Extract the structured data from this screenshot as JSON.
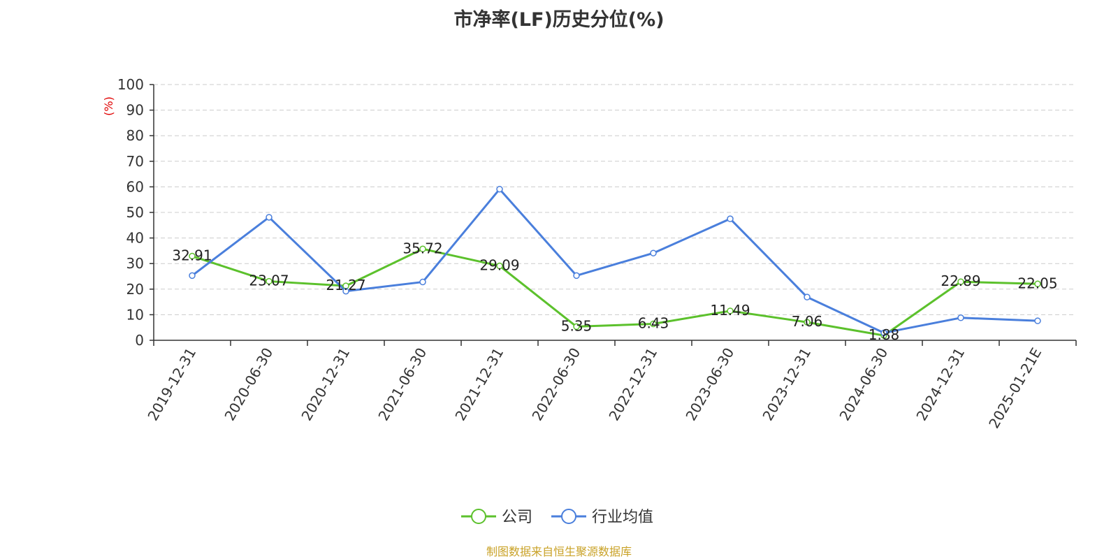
{
  "title": "市净率(LF)历史分位(%)",
  "source": "制图数据来自恒生聚源数据库",
  "chart_data": {
    "type": "line",
    "title": "市净率(LF)历史分位(%)",
    "ylabel": "(%)",
    "ylim": [
      0,
      100
    ],
    "yticks": [
      0,
      10,
      20,
      30,
      40,
      50,
      60,
      70,
      80,
      90,
      100
    ],
    "grid": true,
    "legend_position": "bottom-center",
    "categories": [
      "2019-12-31",
      "2020-06-30",
      "2020-12-31",
      "2021-06-30",
      "2021-12-31",
      "2022-06-30",
      "2022-12-31",
      "2023-06-30",
      "2023-12-31",
      "2024-06-30",
      "2024-12-31",
      "2025-01-21E"
    ],
    "series": [
      {
        "name": "公司",
        "color": "#5cc12c",
        "values": [
          32.91,
          23.07,
          21.27,
          35.72,
          29.09,
          5.35,
          6.43,
          11.49,
          7.06,
          1.88,
          22.89,
          22.05
        ],
        "labels": [
          "32.91",
          "23.07",
          "21.27",
          "35.72",
          "29.09",
          "5.35",
          "6.43",
          "11.49",
          "7.06",
          "1.88",
          "22.89",
          "22.05"
        ]
      },
      {
        "name": "行业均值",
        "color": "#4a7fdc",
        "values": [
          25.3,
          48.1,
          19.2,
          22.8,
          59.1,
          25.3,
          34.1,
          47.5,
          16.9,
          2.9,
          8.8,
          7.6
        ]
      }
    ]
  }
}
